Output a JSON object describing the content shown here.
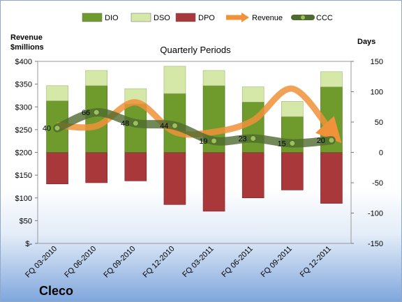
{
  "chart_data": {
    "type": "bar",
    "title": "Quarterly Periods",
    "company": "Cleco",
    "left_axis_title": [
      "Revenue",
      "$millions"
    ],
    "right_axis_title": "Days",
    "left_ticks": [
      "$-",
      "$50",
      "$100",
      "$150",
      "$200",
      "$250",
      "$300",
      "$350",
      "$400"
    ],
    "right_ticks": [
      "-150",
      "-100",
      "-50",
      "0",
      "50",
      "100",
      "150"
    ],
    "left_ylim": [
      0,
      400
    ],
    "right_ylim": [
      -150,
      150
    ],
    "legend": [
      "DIO",
      "DSO",
      "DPO",
      "Revenue",
      "CCC"
    ],
    "categories": [
      "FQ 03-2010",
      "FQ 06-2010",
      "FQ 09-2010",
      "FQ 12-2010",
      "FQ 03-2011",
      "FQ 06-2011",
      "FQ 09-2011",
      "FQ 12-2011"
    ],
    "series": [
      {
        "name": "DIO",
        "axis": "right",
        "values": [
          85,
          110,
          80,
          97,
          110,
          83,
          59,
          108
        ]
      },
      {
        "name": "DSO",
        "axis": "right",
        "values": [
          25,
          25,
          25,
          45,
          25,
          25,
          25,
          25
        ]
      },
      {
        "name": "DPO",
        "axis": "right",
        "values": [
          -52,
          -50,
          -47,
          -86,
          -97,
          -75,
          -62,
          -84
        ]
      },
      {
        "name": "Revenue",
        "axis": "left",
        "values": [
          260,
          258,
          310,
          245,
          245,
          270,
          340,
          245
        ]
      },
      {
        "name": "CCC",
        "axis": "right",
        "values": [
          40,
          66,
          48,
          44,
          19,
          23,
          15,
          20
        ]
      }
    ],
    "ccc_labels": [
      "40",
      "66",
      "48",
      "44",
      "19",
      "23",
      "15",
      "20"
    ],
    "colors": {
      "DIO": "#6f9b2d",
      "DSO": "#d5e8a8",
      "DPO": "#a8383a",
      "Revenue": "#f0923a",
      "CCC": "#4f6a2e"
    }
  }
}
